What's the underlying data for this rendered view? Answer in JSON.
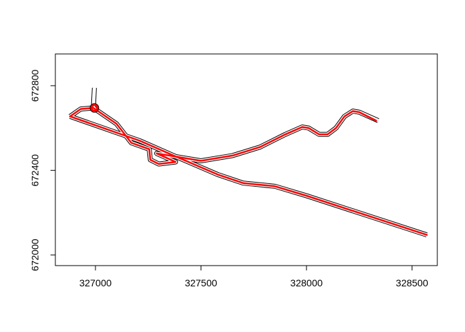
{
  "chart_data": {
    "type": "line",
    "title": "",
    "xlabel": "",
    "ylabel": "",
    "xlim": [
      326810,
      328620
    ],
    "ylim": [
      671950,
      672950
    ],
    "x_ticks": [
      327000,
      327500,
      328000,
      328500
    ],
    "x_tick_labels": [
      "327000",
      "327500",
      "328000",
      "328500"
    ],
    "y_ticks": [
      672000,
      672400,
      672800
    ],
    "y_tick_labels": [
      "672000",
      "672400",
      "672800"
    ],
    "grid": false,
    "legend": "none",
    "colors": {
      "outline": "#000000",
      "fill": "#ffffff",
      "route": "#ff0000"
    },
    "series": [
      {
        "kind": "buffer-outline",
        "points": [
          [
            326880,
            672655
          ],
          [
            327210,
            672540
          ],
          [
            327370,
            672470
          ],
          [
            327580,
            672380
          ],
          [
            327700,
            672340
          ],
          [
            327850,
            672325
          ],
          [
            328000,
            672280
          ],
          [
            328570,
            672095
          ]
        ]
      },
      {
        "kind": "buffer-outline",
        "points": [
          [
            326880,
            672655
          ],
          [
            326930,
            672690
          ],
          [
            326990,
            672695
          ],
          [
            326995,
            672790
          ]
        ]
      },
      {
        "kind": "buffer-outline",
        "points": [
          [
            326990,
            672695
          ],
          [
            327100,
            672620
          ],
          [
            327170,
            672530
          ],
          [
            327255,
            672500
          ],
          [
            327260,
            672450
          ],
          [
            327300,
            672430
          ],
          [
            327380,
            672440
          ],
          [
            327290,
            672480
          ],
          [
            327500,
            672445
          ],
          [
            327650,
            672470
          ],
          [
            327780,
            672510
          ],
          [
            327900,
            672570
          ],
          [
            327980,
            672605
          ],
          [
            328010,
            672600
          ],
          [
            328060,
            672570
          ],
          [
            328100,
            672570
          ],
          [
            328140,
            672600
          ],
          [
            328180,
            672655
          ],
          [
            328220,
            672680
          ],
          [
            328250,
            672675
          ],
          [
            328340,
            672635
          ]
        ]
      },
      {
        "kind": "route",
        "points": [
          [
            326880,
            672655
          ],
          [
            327210,
            672540
          ],
          [
            327370,
            672470
          ],
          [
            327580,
            672380
          ],
          [
            327700,
            672340
          ],
          [
            327850,
            672325
          ],
          [
            328000,
            672280
          ],
          [
            328570,
            672095
          ]
        ]
      },
      {
        "kind": "route",
        "points": [
          [
            326880,
            672655
          ],
          [
            326930,
            672690
          ],
          [
            326990,
            672695
          ]
        ]
      },
      {
        "kind": "route",
        "points": [
          [
            326990,
            672695
          ],
          [
            327100,
            672620
          ],
          [
            327170,
            672530
          ],
          [
            327255,
            672500
          ],
          [
            327260,
            672450
          ],
          [
            327300,
            672430
          ],
          [
            327380,
            672440
          ],
          [
            327290,
            672480
          ],
          [
            327500,
            672445
          ],
          [
            327650,
            672470
          ],
          [
            327780,
            672510
          ],
          [
            327900,
            672570
          ],
          [
            327980,
            672605
          ],
          [
            328010,
            672600
          ],
          [
            328060,
            672570
          ],
          [
            328100,
            672570
          ],
          [
            328140,
            672600
          ],
          [
            328180,
            672655
          ],
          [
            328220,
            672680
          ],
          [
            328250,
            672675
          ],
          [
            328330,
            672635
          ]
        ]
      }
    ],
    "circles": [
      {
        "kind": "route-circle",
        "x": 326995,
        "y": 672695,
        "r_data_x": 14
      }
    ]
  }
}
